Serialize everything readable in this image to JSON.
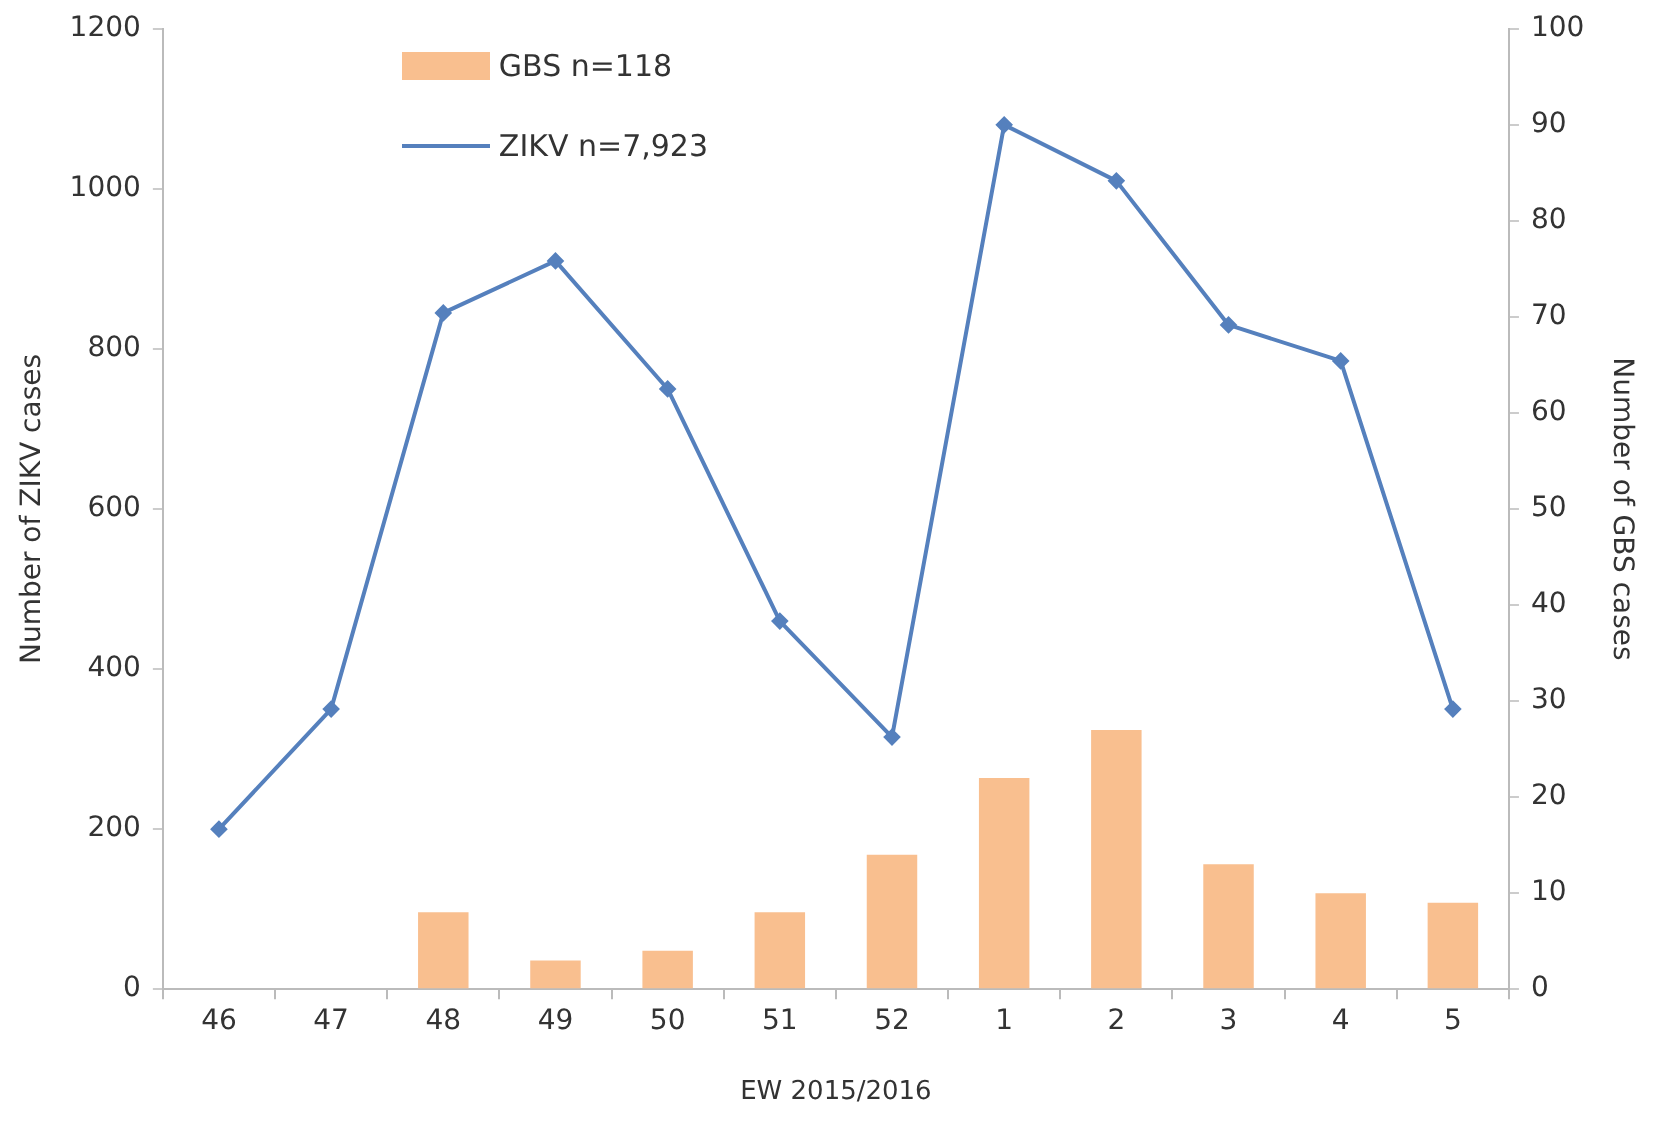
{
  "chart_data": {
    "type": "bar",
    "xlabel": "EW 2015/2016",
    "ylabel": "Number of ZIKV cases",
    "y2label": "Number of GBS cases",
    "categories": [
      "46",
      "47",
      "48",
      "49",
      "50",
      "51",
      "52",
      "1",
      "2",
      "3",
      "4",
      "5"
    ],
    "series": [
      {
        "name": "GBS n=118",
        "axis": "y2",
        "color": "#f9bf8f",
        "values": [
          0,
          0,
          8,
          3,
          4,
          8,
          14,
          22,
          27,
          13,
          10,
          9
        ]
      },
      {
        "name": "ZIKV n=7,923",
        "type": "line",
        "axis": "y",
        "color": "#5580bd",
        "values": [
          200,
          350,
          845,
          910,
          750,
          460,
          315,
          1080,
          1010,
          830,
          785,
          350
        ]
      }
    ],
    "ylim": [
      0,
      1200
    ],
    "yticks": [
      0,
      200,
      400,
      600,
      800,
      1000,
      1200
    ],
    "y2lim": [
      0,
      100
    ],
    "y2ticks": [
      0,
      10,
      20,
      30,
      40,
      50,
      60,
      70,
      80,
      90,
      100
    ],
    "grid": false,
    "legend": "top left",
    "marker": "diamond",
    "line_style": "solid"
  }
}
